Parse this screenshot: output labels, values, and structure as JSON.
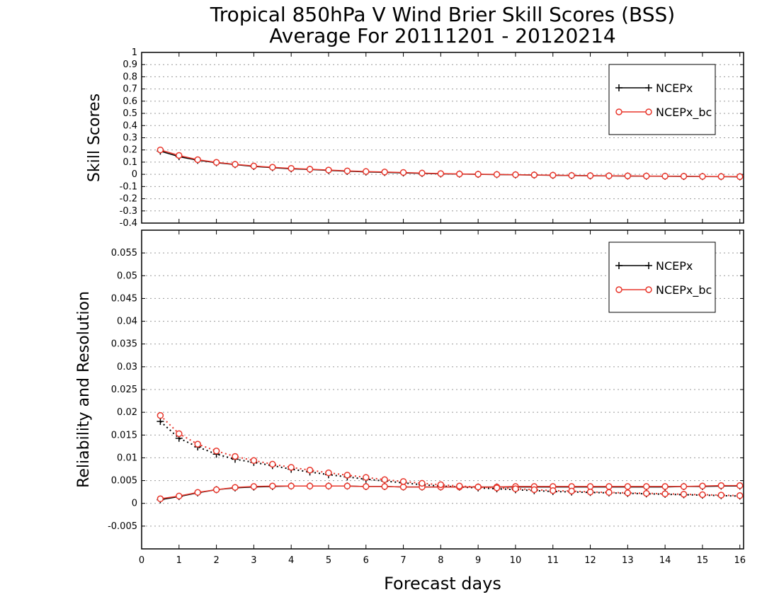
{
  "title_line1": "Tropical 850hPa V Wind Brier Skill Scores (BSS)",
  "title_line2": "Average For 20111201 - 20120214",
  "x_label": "Forecast days",
  "colors": {
    "ncepx": "#000000",
    "ncepx_bc": "#e8362b",
    "grid": "#999999"
  },
  "chart_data": [
    {
      "type": "line",
      "panel": "top",
      "ylabel": "Skill Scores",
      "xlim": [
        0,
        16.1
      ],
      "ylim": [
        -0.4,
        1
      ],
      "xticks": [
        0,
        1,
        2,
        3,
        4,
        5,
        6,
        7,
        8,
        9,
        10,
        11,
        12,
        13,
        14,
        15,
        16
      ],
      "yticks": [
        "-0.4",
        "-0.3",
        "-0.2",
        "-0.1",
        "0",
        "0.1",
        "0.2",
        "0.3",
        "0.4",
        "0.5",
        "0.6",
        "0.7",
        "0.8",
        "0.9",
        "1"
      ],
      "grid": true,
      "legend": {
        "placement": "top-right",
        "entries": [
          "NCEPx",
          "NCEPx_bc"
        ]
      },
      "x": [
        0.5,
        1,
        1.5,
        2,
        2.5,
        3,
        3.5,
        4,
        4.5,
        5,
        5.5,
        6,
        6.5,
        7,
        7.5,
        8,
        8.5,
        9,
        9.5,
        10,
        10.5,
        11,
        11.5,
        12,
        12.5,
        13,
        13.5,
        14,
        14.5,
        15,
        15.5,
        16
      ],
      "series": [
        {
          "name": "NCEPx",
          "style": "solid-plus",
          "values": [
            0.19,
            0.145,
            0.115,
            0.095,
            0.08,
            0.065,
            0.055,
            0.045,
            0.04,
            0.032,
            0.025,
            0.02,
            0.016,
            0.012,
            0.008,
            0.004,
            0.002,
            0.0,
            -0.002,
            -0.004,
            -0.006,
            -0.008,
            -0.01,
            -0.012,
            -0.013,
            -0.014,
            -0.015,
            -0.016,
            -0.017,
            -0.018,
            -0.019,
            -0.02
          ]
        },
        {
          "name": "NCEPx_bc",
          "style": "solid-circle",
          "values": [
            0.2,
            0.155,
            0.12,
            0.098,
            0.082,
            0.068,
            0.058,
            0.049,
            0.042,
            0.035,
            0.028,
            0.023,
            0.019,
            0.015,
            0.01,
            0.006,
            0.003,
            0.001,
            -0.001,
            -0.003,
            -0.005,
            -0.007,
            -0.009,
            -0.011,
            -0.012,
            -0.013,
            -0.014,
            -0.015,
            -0.016,
            -0.017,
            -0.018,
            -0.019
          ]
        }
      ]
    },
    {
      "type": "line",
      "panel": "bottom",
      "ylabel": "Reliability and Resolution",
      "xlim": [
        0,
        16.1
      ],
      "ylim": [
        -0.01,
        0.06
      ],
      "xticks": [
        0,
        1,
        2,
        3,
        4,
        5,
        6,
        7,
        8,
        9,
        10,
        11,
        12,
        13,
        14,
        15,
        16
      ],
      "yticks": [
        "-0.005",
        "0",
        "0.005",
        "0.01",
        "0.015",
        "0.02",
        "0.025",
        "0.03",
        "0.035",
        "0.04",
        "0.045",
        "0.05",
        "0.055"
      ],
      "grid": true,
      "legend": {
        "placement": "top-right",
        "entries": [
          "NCEPx",
          "NCEPx_bc"
        ]
      },
      "x": [
        0.5,
        1,
        1.5,
        2,
        2.5,
        3,
        3.5,
        4,
        4.5,
        5,
        5.5,
        6,
        6.5,
        7,
        7.5,
        8,
        8.5,
        9,
        9.5,
        10,
        10.5,
        11,
        11.5,
        12,
        12.5,
        13,
        13.5,
        14,
        14.5,
        15,
        15.5,
        16
      ],
      "series": [
        {
          "name": "NCEPx",
          "metric": "Reliability",
          "style": "solid-plus",
          "values": [
            0.0008,
            0.0015,
            0.0023,
            0.003,
            0.0034,
            0.0036,
            0.0037,
            0.0038,
            0.0038,
            0.0038,
            0.0038,
            0.0037,
            0.0037,
            0.0036,
            0.0036,
            0.0036,
            0.0036,
            0.0036,
            0.0036,
            0.0036,
            0.0036,
            0.0036,
            0.0036,
            0.0036,
            0.0036,
            0.0036,
            0.0036,
            0.0036,
            0.0037,
            0.0037,
            0.0038,
            0.0038
          ]
        },
        {
          "name": "NCEPx",
          "metric": "Resolution",
          "style": "dotted-plus",
          "values": [
            0.018,
            0.0143,
            0.0124,
            0.0108,
            0.0097,
            0.009,
            0.0083,
            0.0075,
            0.0069,
            0.0063,
            0.0058,
            0.0053,
            0.0049,
            0.0045,
            0.0041,
            0.0038,
            0.0036,
            0.0034,
            0.0032,
            0.003,
            0.0028,
            0.0026,
            0.0025,
            0.0024,
            0.0023,
            0.0022,
            0.0021,
            0.002,
            0.0019,
            0.0018,
            0.0017,
            0.0016
          ]
        },
        {
          "name": "NCEPx_bc",
          "metric": "Reliability",
          "style": "solid-circle",
          "values": [
            0.001,
            0.0016,
            0.0024,
            0.003,
            0.0035,
            0.0037,
            0.0038,
            0.0038,
            0.0038,
            0.0038,
            0.0038,
            0.0037,
            0.0037,
            0.0036,
            0.0036,
            0.0036,
            0.0036,
            0.0036,
            0.0036,
            0.0037,
            0.0037,
            0.0037,
            0.0037,
            0.0037,
            0.0037,
            0.0037,
            0.0037,
            0.0037,
            0.0037,
            0.0038,
            0.0039,
            0.0039
          ]
        },
        {
          "name": "NCEPx_bc",
          "metric": "Resolution",
          "style": "dotted-circle",
          "values": [
            0.0193,
            0.0153,
            0.013,
            0.0115,
            0.0103,
            0.0094,
            0.0086,
            0.0079,
            0.0073,
            0.0067,
            0.0062,
            0.0057,
            0.0052,
            0.0048,
            0.0044,
            0.0041,
            0.0038,
            0.0036,
            0.0034,
            0.0032,
            0.003,
            0.0028,
            0.0027,
            0.0025,
            0.0024,
            0.0023,
            0.0022,
            0.0021,
            0.002,
            0.0019,
            0.0018,
            0.0017
          ]
        }
      ]
    }
  ]
}
